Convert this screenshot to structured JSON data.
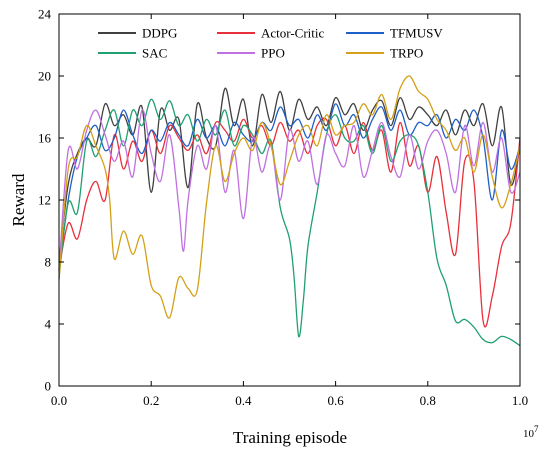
{
  "chart_data": {
    "type": "line",
    "title": "",
    "xlabel": "Training episode",
    "ylabel": "Reward",
    "x_multiplier": "10",
    "x_multiplier_exp": "7",
    "xlim": [
      0.0,
      1.0
    ],
    "ylim": [
      0,
      24
    ],
    "xticks": [
      0.0,
      0.2,
      0.4,
      0.6,
      0.8,
      1.0
    ],
    "xtick_labels": [
      "0.0",
      "0.2",
      "0.4",
      "0.6",
      "0.8",
      "1.0"
    ],
    "yticks": [
      0,
      4,
      8,
      12,
      16,
      20,
      24
    ],
    "ytick_labels": [
      "0",
      "4",
      "8",
      "12",
      "16",
      "20",
      "24"
    ],
    "grid": false,
    "legend_position": "top",
    "series": [
      {
        "name": "DDPG",
        "color": "#404040",
        "x": [
          0.0,
          0.02,
          0.04,
          0.06,
          0.08,
          0.1,
          0.12,
          0.14,
          0.16,
          0.18,
          0.2,
          0.22,
          0.24,
          0.26,
          0.28,
          0.3,
          0.32,
          0.34,
          0.36,
          0.38,
          0.4,
          0.42,
          0.44,
          0.46,
          0.48,
          0.5,
          0.52,
          0.54,
          0.56,
          0.58,
          0.6,
          0.62,
          0.64,
          0.66,
          0.68,
          0.7,
          0.72,
          0.74,
          0.76,
          0.78,
          0.8,
          0.82,
          0.84,
          0.86,
          0.88,
          0.9,
          0.92,
          0.94,
          0.96,
          0.98,
          1.0
        ],
        "y": [
          8.0,
          13.0,
          15.0,
          16.0,
          15.5,
          18.2,
          16.8,
          17.5,
          16.2,
          18.0,
          12.5,
          17.8,
          16.5,
          17.2,
          12.8,
          18.2,
          16.0,
          15.5,
          19.2,
          16.8,
          18.5,
          15.5,
          18.8,
          17.0,
          19.0,
          16.5,
          18.5,
          17.2,
          18.0,
          16.8,
          18.6,
          17.5,
          18.2,
          16.5,
          17.8,
          18.4,
          16.8,
          18.6,
          17.2,
          18.0,
          17.5,
          16.8,
          17.8,
          16.2,
          17.8,
          16.8,
          18.2,
          15.5,
          18.0,
          13.0,
          15.5
        ]
      },
      {
        "name": "Actor-Critic",
        "color": "#e8303a",
        "x": [
          0.0,
          0.02,
          0.04,
          0.06,
          0.08,
          0.1,
          0.12,
          0.14,
          0.16,
          0.18,
          0.2,
          0.22,
          0.24,
          0.26,
          0.28,
          0.3,
          0.32,
          0.34,
          0.36,
          0.38,
          0.4,
          0.42,
          0.44,
          0.46,
          0.48,
          0.5,
          0.52,
          0.54,
          0.56,
          0.58,
          0.6,
          0.62,
          0.64,
          0.66,
          0.68,
          0.7,
          0.72,
          0.74,
          0.76,
          0.78,
          0.8,
          0.82,
          0.84,
          0.86,
          0.88,
          0.9,
          0.92,
          0.94,
          0.96,
          0.98,
          1.0
        ],
        "y": [
          7.5,
          10.5,
          9.5,
          12.0,
          13.2,
          12.0,
          16.2,
          14.0,
          15.8,
          14.5,
          16.5,
          15.0,
          16.8,
          16.0,
          15.2,
          16.2,
          15.0,
          17.0,
          16.5,
          15.8,
          17.2,
          16.0,
          16.8,
          15.5,
          17.0,
          15.8,
          16.5,
          15.0,
          16.8,
          17.2,
          15.5,
          16.8,
          15.0,
          17.0,
          15.2,
          16.5,
          13.8,
          17.0,
          14.2,
          15.5,
          12.5,
          14.8,
          11.2,
          8.5,
          14.5,
          13.2,
          4.2,
          5.8,
          9.0,
          10.5,
          16.0
        ]
      },
      {
        "name": "TFMUSV",
        "color": "#1f5fc8",
        "x": [
          0.0,
          0.02,
          0.04,
          0.06,
          0.08,
          0.1,
          0.12,
          0.14,
          0.16,
          0.18,
          0.2,
          0.22,
          0.24,
          0.26,
          0.28,
          0.3,
          0.32,
          0.34,
          0.36,
          0.38,
          0.4,
          0.42,
          0.44,
          0.46,
          0.48,
          0.5,
          0.52,
          0.54,
          0.56,
          0.58,
          0.6,
          0.62,
          0.64,
          0.66,
          0.68,
          0.7,
          0.72,
          0.74,
          0.76,
          0.78,
          0.8,
          0.82,
          0.84,
          0.86,
          0.88,
          0.9,
          0.92,
          0.94,
          0.96,
          0.98,
          1.0
        ],
        "y": [
          7.5,
          12.0,
          14.8,
          16.0,
          16.8,
          15.2,
          16.0,
          17.8,
          16.2,
          15.0,
          16.5,
          15.8,
          17.0,
          16.2,
          15.5,
          17.2,
          16.0,
          16.8,
          15.5,
          17.0,
          16.2,
          15.8,
          17.0,
          16.5,
          18.0,
          16.8,
          17.2,
          16.0,
          17.5,
          16.5,
          18.2,
          16.8,
          17.5,
          16.0,
          17.2,
          18.0,
          16.5,
          17.8,
          16.2,
          17.0,
          16.8,
          17.5,
          16.0,
          17.2,
          16.5,
          17.8,
          16.0,
          12.0,
          16.5,
          14.0,
          15.5
        ]
      },
      {
        "name": "SAC",
        "color": "#20a070",
        "x": [
          0.0,
          0.02,
          0.04,
          0.06,
          0.08,
          0.1,
          0.12,
          0.14,
          0.16,
          0.18,
          0.2,
          0.22,
          0.24,
          0.26,
          0.28,
          0.3,
          0.32,
          0.34,
          0.36,
          0.38,
          0.4,
          0.42,
          0.44,
          0.46,
          0.48,
          0.5,
          0.51,
          0.52,
          0.53,
          0.54,
          0.56,
          0.58,
          0.6,
          0.62,
          0.64,
          0.66,
          0.68,
          0.7,
          0.72,
          0.74,
          0.76,
          0.78,
          0.8,
          0.82,
          0.84,
          0.86,
          0.88,
          0.9,
          0.92,
          0.94,
          0.96,
          0.98,
          1.0
        ],
        "y": [
          7.0,
          11.8,
          11.2,
          15.8,
          14.8,
          16.5,
          17.8,
          15.5,
          17.8,
          16.8,
          18.5,
          17.2,
          18.4,
          16.8,
          17.5,
          15.8,
          17.2,
          16.2,
          17.8,
          15.5,
          16.8,
          16.2,
          15.0,
          15.8,
          11.5,
          9.5,
          7.0,
          3.2,
          5.5,
          9.0,
          12.5,
          16.2,
          17.5,
          16.0,
          15.8,
          16.8,
          15.0,
          16.8,
          14.5,
          15.8,
          16.2,
          15.5,
          12.5,
          8.2,
          6.5,
          4.2,
          4.3,
          3.8,
          3.0,
          2.8,
          3.2,
          3.0,
          2.6
        ]
      },
      {
        "name": "PPO",
        "color": "#c070e0",
        "x": [
          0.0,
          0.02,
          0.04,
          0.06,
          0.08,
          0.1,
          0.12,
          0.14,
          0.16,
          0.18,
          0.2,
          0.22,
          0.24,
          0.26,
          0.27,
          0.28,
          0.3,
          0.32,
          0.34,
          0.36,
          0.38,
          0.4,
          0.42,
          0.44,
          0.46,
          0.48,
          0.5,
          0.52,
          0.54,
          0.56,
          0.58,
          0.6,
          0.62,
          0.64,
          0.66,
          0.68,
          0.7,
          0.72,
          0.74,
          0.76,
          0.78,
          0.8,
          0.82,
          0.84,
          0.86,
          0.88,
          0.9,
          0.92,
          0.94,
          0.96,
          0.98,
          1.0
        ],
        "y": [
          7.5,
          15.2,
          14.0,
          16.5,
          17.8,
          16.2,
          14.5,
          15.8,
          13.5,
          17.8,
          15.0,
          13.2,
          16.2,
          11.5,
          8.7,
          12.0,
          15.5,
          14.0,
          16.8,
          12.5,
          15.2,
          10.8,
          16.0,
          13.8,
          15.5,
          12.0,
          16.5,
          14.5,
          15.8,
          13.0,
          16.2,
          15.0,
          14.2,
          16.8,
          13.5,
          15.2,
          17.0,
          14.8,
          13.5,
          16.2,
          14.0,
          15.8,
          16.5,
          15.0,
          12.5,
          16.8,
          14.2,
          17.0,
          13.8,
          16.0,
          12.5,
          13.8
        ]
      },
      {
        "name": "TRPO",
        "color": "#d4a017",
        "x": [
          0.0,
          0.02,
          0.04,
          0.06,
          0.08,
          0.1,
          0.11,
          0.12,
          0.14,
          0.16,
          0.18,
          0.2,
          0.22,
          0.24,
          0.26,
          0.28,
          0.3,
          0.32,
          0.34,
          0.36,
          0.38,
          0.4,
          0.42,
          0.44,
          0.46,
          0.48,
          0.5,
          0.52,
          0.54,
          0.56,
          0.58,
          0.6,
          0.62,
          0.64,
          0.66,
          0.68,
          0.7,
          0.72,
          0.74,
          0.76,
          0.78,
          0.8,
          0.82,
          0.84,
          0.86,
          0.88,
          0.9,
          0.92,
          0.94,
          0.96,
          0.98,
          1.0
        ],
        "y": [
          6.8,
          14.0,
          14.8,
          16.8,
          15.5,
          14.0,
          12.0,
          8.2,
          10.0,
          8.5,
          9.7,
          6.5,
          5.8,
          4.4,
          7.0,
          6.3,
          6.2,
          11.8,
          15.5,
          13.2,
          15.0,
          16.0,
          15.2,
          17.0,
          15.5,
          13.0,
          14.5,
          16.2,
          16.8,
          15.5,
          17.5,
          16.2,
          16.8,
          17.0,
          18.2,
          17.5,
          18.8,
          17.2,
          19.2,
          20.0,
          19.0,
          18.5,
          17.2,
          16.5,
          15.2,
          16.0,
          13.8,
          16.2,
          13.5,
          11.5,
          13.0,
          15.5
        ]
      }
    ]
  }
}
